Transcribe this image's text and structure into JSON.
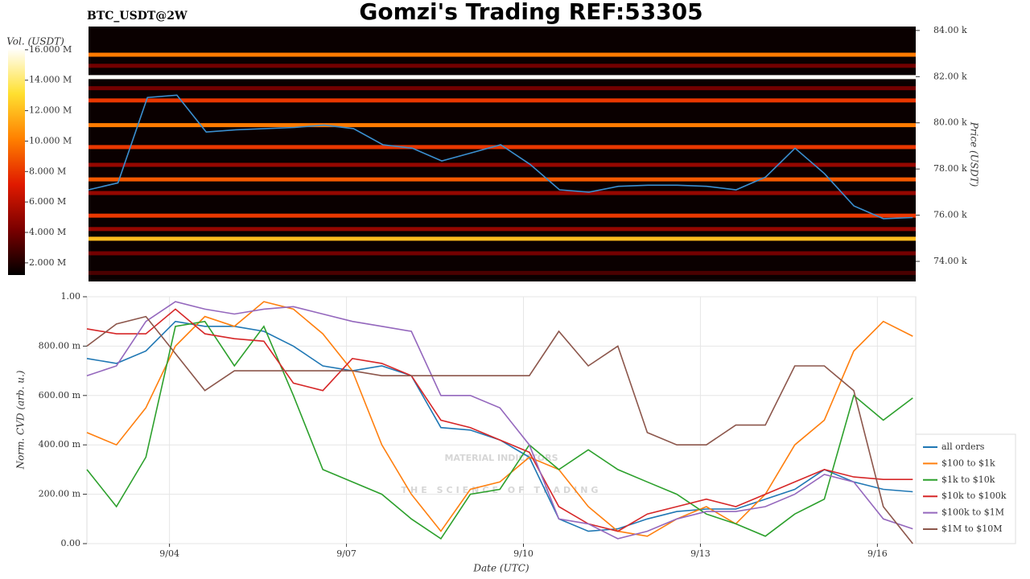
{
  "chart_data": [
    {
      "type": "heatmap",
      "title": "Gomzi's Trading REF:53305",
      "subtitle": "BTC_USDT@2W",
      "ylabel": "Price (USDT)",
      "colorbar_label": "Vol. (USDT)",
      "xlim": [
        2.6,
        16.65
      ],
      "ylim": [
        73130,
        84170
      ],
      "yticks": [
        {
          "value": 74000,
          "label": "74.00 k"
        },
        {
          "value": 76000,
          "label": "76.00 k"
        },
        {
          "value": 78000,
          "label": "78.00 k"
        },
        {
          "value": 80000,
          "label": "80.00 k"
        },
        {
          "value": 82000,
          "label": "82.00 k"
        },
        {
          "value": 84000,
          "label": "84.00 k"
        }
      ],
      "clim": [
        1200000,
        16100000
      ],
      "cticks": [
        {
          "value": 2000000,
          "label": "2.000 M"
        },
        {
          "value": 4000000,
          "label": "4.000 M"
        },
        {
          "value": 6000000,
          "label": "6.000 M"
        },
        {
          "value": 8000000,
          "label": "8.000 M"
        },
        {
          "value": 10000000,
          "label": "10.000 M"
        },
        {
          "value": 12000000,
          "label": "12.000 M"
        },
        {
          "value": 14000000,
          "label": "14.000 M"
        },
        {
          "value": 16000000,
          "label": "16.000 M"
        }
      ],
      "colorscale": [
        "#000000",
        "#7a0000",
        "#e01a00",
        "#ff8000",
        "#ffe030",
        "#ffffff"
      ],
      "levels": {
        "prices": [
          82950,
          81980,
          80970,
          79900,
          78950,
          77550,
          75980,
          74980,
          76960,
          78180,
          82470,
          81500,
          75400,
          74350,
          73500
        ],
        "volumes": [
          10000000,
          16000000,
          8000000,
          10000000,
          8000000,
          9000000,
          8000000,
          12000000,
          5000000,
          5000000,
          4000000,
          4000000,
          5000000,
          4000000,
          3000000
        ]
      },
      "x": [
        2.6,
        3.1,
        3.6,
        4.1,
        4.6,
        5.1,
        5.6,
        6.1,
        6.6,
        7.1,
        7.6,
        8.1,
        8.6,
        9.1,
        9.6,
        10.1,
        10.6,
        11.1,
        11.6,
        12.1,
        12.6,
        13.1,
        13.6,
        14.1,
        14.6,
        15.1,
        15.6,
        16.1,
        16.6
      ],
      "series": [
        {
          "color": "#3a8fd0",
          "values": [
            77100,
            77400,
            81100,
            81200,
            79600,
            79700,
            79750,
            79800,
            79900,
            79750,
            79050,
            78900,
            78350,
            78700,
            79050,
            78200,
            77100,
            77000,
            77250,
            77300,
            77300,
            77250,
            77100,
            77650,
            78900,
            77800,
            76400,
            75850,
            75900
          ]
        }
      ]
    },
    {
      "type": "line",
      "xlabel": "Date (UTC)",
      "ylabel": "Norm. CVD (arb. u.)",
      "watermark": {
        "title": "MATERIAL INDICATORS",
        "subtitle": "THE SCIENCE OF TRADING"
      },
      "xlim": [
        2.6,
        16.65
      ],
      "ylim": [
        0,
        1
      ],
      "xticks": [
        {
          "value": 4,
          "label": "9/04"
        },
        {
          "value": 7,
          "label": "9/07"
        },
        {
          "value": 10,
          "label": "9/10"
        },
        {
          "value": 13,
          "label": "9/13"
        },
        {
          "value": 16,
          "label": "9/16"
        }
      ],
      "yticks": [
        {
          "value": 0,
          "label": "0.00"
        },
        {
          "value": 0.2,
          "label": "200.00 m"
        },
        {
          "value": 0.4,
          "label": "400.00 m"
        },
        {
          "value": 0.6,
          "label": "600.00 m"
        },
        {
          "value": 0.8,
          "label": "800.00 m"
        },
        {
          "value": 1,
          "label": "1.00"
        }
      ],
      "grid": true,
      "legend": "right",
      "x": [
        2.6,
        3.1,
        3.6,
        4.1,
        4.6,
        5.1,
        5.6,
        6.1,
        6.6,
        7.1,
        7.6,
        8.1,
        8.6,
        9.1,
        9.6,
        10.1,
        10.6,
        11.1,
        11.6,
        12.1,
        12.6,
        13.1,
        13.6,
        14.1,
        14.6,
        15.1,
        15.6,
        16.1,
        16.6
      ],
      "series": [
        {
          "name": "all orders",
          "color": "#1f77b4",
          "values": [
            0.75,
            0.73,
            0.78,
            0.9,
            0.88,
            0.88,
            0.86,
            0.8,
            0.72,
            0.7,
            0.72,
            0.68,
            0.47,
            0.46,
            0.42,
            0.35,
            0.1,
            0.05,
            0.06,
            0.1,
            0.13,
            0.14,
            0.14,
            0.18,
            0.22,
            0.3,
            0.25,
            0.22,
            0.21
          ]
        },
        {
          "name": "$100 to $1k",
          "color": "#ff7f0e",
          "values": [
            0.45,
            0.4,
            0.55,
            0.8,
            0.92,
            0.88,
            0.98,
            0.95,
            0.85,
            0.7,
            0.4,
            0.2,
            0.05,
            0.22,
            0.25,
            0.35,
            0.3,
            0.15,
            0.05,
            0.03,
            0.1,
            0.15,
            0.08,
            0.2,
            0.4,
            0.5,
            0.78,
            0.9,
            0.84
          ]
        },
        {
          "name": "$1k to $10k",
          "color": "#2ca02c",
          "values": [
            0.3,
            0.15,
            0.35,
            0.88,
            0.9,
            0.72,
            0.88,
            0.6,
            0.3,
            0.25,
            0.2,
            0.1,
            0.02,
            0.2,
            0.22,
            0.4,
            0.3,
            0.38,
            0.3,
            0.25,
            0.2,
            0.12,
            0.08,
            0.03,
            0.12,
            0.18,
            0.6,
            0.5,
            0.59
          ]
        },
        {
          "name": "$10k to $100k",
          "color": "#d62728",
          "values": [
            0.87,
            0.85,
            0.85,
            0.95,
            0.85,
            0.83,
            0.82,
            0.65,
            0.62,
            0.75,
            0.73,
            0.68,
            0.5,
            0.47,
            0.42,
            0.37,
            0.15,
            0.08,
            0.05,
            0.12,
            0.15,
            0.18,
            0.15,
            0.2,
            0.25,
            0.3,
            0.27,
            0.26,
            0.26
          ]
        },
        {
          "name": "$100k to $1M",
          "color": "#9467bd",
          "values": [
            0.68,
            0.72,
            0.9,
            0.98,
            0.95,
            0.93,
            0.95,
            0.96,
            0.93,
            0.9,
            0.88,
            0.86,
            0.6,
            0.6,
            0.55,
            0.4,
            0.1,
            0.08,
            0.02,
            0.05,
            0.1,
            0.13,
            0.13,
            0.15,
            0.2,
            0.28,
            0.25,
            0.1,
            0.06
          ]
        },
        {
          "name": "$1M to $10M",
          "color": "#8c564b",
          "values": [
            0.8,
            0.89,
            0.92,
            0.77,
            0.62,
            0.7,
            0.7,
            0.7,
            0.7,
            0.7,
            0.68,
            0.68,
            0.68,
            0.68,
            0.68,
            0.68,
            0.86,
            0.72,
            0.8,
            0.45,
            0.4,
            0.4,
            0.48,
            0.48,
            0.72,
            0.72,
            0.62,
            0.15,
            0
          ]
        }
      ]
    }
  ]
}
